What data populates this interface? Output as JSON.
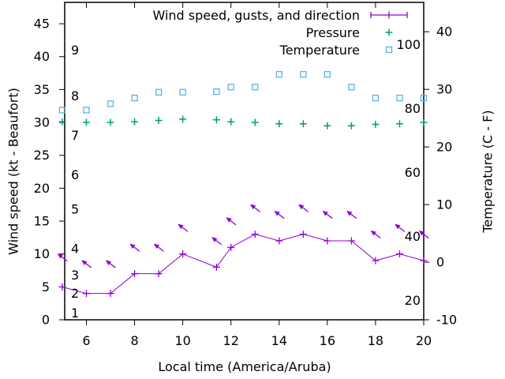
{
  "figure": {
    "x_label": "Local time (America/Aruba)",
    "y_left_label": "Wind speed (kt - Beaufort)",
    "y_right_label": "Temperature (C - F)"
  },
  "legend": [
    {
      "label": "Wind speed, gusts, and direction",
      "series": "wind",
      "marker": "errorbar-line"
    },
    {
      "label": "Pressure",
      "series": "pressure",
      "marker": "plus"
    },
    {
      "label": "Temperature",
      "series": "temperature",
      "marker": "open-square"
    }
  ],
  "colors": {
    "wind": "#9400D3",
    "pressure": "#009E73",
    "temperature": "#56B4E9",
    "axis": "#000000",
    "background": "#FFFFFF"
  },
  "chart_data": {
    "type": "line",
    "title": "",
    "x": [
      5,
      6,
      7,
      8,
      9,
      10,
      11.4,
      12,
      13,
      14,
      15,
      16,
      17,
      18,
      19,
      20
    ],
    "series": [
      {
        "name": "Wind speed (kt)",
        "axis": "left",
        "color_key": "wind",
        "marker": "plus",
        "line": true,
        "values": [
          5,
          4,
          4,
          7,
          7,
          10,
          8,
          11,
          13,
          12,
          13,
          12,
          12,
          9,
          10,
          9
        ]
      },
      {
        "name": "Wind gusts (kt) with direction arrows",
        "axis": "left",
        "color_key": "wind",
        "marker": "arrow-northwest",
        "line": false,
        "direction_note": "all arrows point toward the upper-left (wind blowing toward NW, i.e. from the ESE)",
        "values": [
          9.5,
          8.5,
          8.5,
          11,
          11,
          14,
          12,
          15,
          17,
          16,
          17,
          16,
          16,
          13,
          14,
          13
        ]
      },
      {
        "name": "Pressure (inHg, plotted against left-axis numbers)",
        "axis": "left",
        "color_key": "pressure",
        "marker": "plus",
        "line": false,
        "values": [
          30.1,
          30.0,
          30.0,
          30.1,
          30.3,
          30.5,
          30.4,
          30.1,
          30.0,
          29.8,
          29.8,
          29.5,
          29.5,
          29.7,
          29.8,
          30.0
        ]
      },
      {
        "name": "Temperature (deg C)",
        "axis": "right",
        "color_key": "temperature",
        "marker": "open-square",
        "line": false,
        "values": [
          26.4,
          26.4,
          27.5,
          28.5,
          29.5,
          29.5,
          29.6,
          30.4,
          30.4,
          32.6,
          32.6,
          32.6,
          30.4,
          28.5,
          28.5,
          28.5
        ]
      }
    ],
    "axes": {
      "x": {
        "label": "Local time (America/Aruba)",
        "range": [
          5.1,
          20
        ],
        "ticks": [
          6,
          8,
          10,
          12,
          14,
          16,
          18,
          20
        ]
      },
      "y_left": {
        "label": "Wind speed (kt - Beaufort)",
        "range": [
          0,
          48.25
        ],
        "ticks": [
          0,
          5,
          10,
          15,
          20,
          25,
          30,
          35,
          40,
          45
        ],
        "beaufort_labels": [
          {
            "text": "1",
            "kt": 1
          },
          {
            "text": "2",
            "kt": 4
          },
          {
            "text": "3",
            "kt": 6.8
          },
          {
            "text": "4",
            "kt": 10.8
          },
          {
            "text": "5",
            "kt": 16.8
          },
          {
            "text": "6",
            "kt": 22
          },
          {
            "text": "7",
            "kt": 28
          },
          {
            "text": "8",
            "kt": 34
          },
          {
            "text": "9",
            "kt": 41
          }
        ]
      },
      "y_right": {
        "label": "Temperature (C - F)",
        "range": [
          -10,
          45.1
        ],
        "ticks": [
          -10,
          0,
          10,
          20,
          30,
          40
        ],
        "fahrenheit_labels": [
          {
            "text": "20",
            "f": 20
          },
          {
            "text": "40",
            "f": 40
          },
          {
            "text": "60",
            "f": 60
          },
          {
            "text": "80",
            "f": 80
          },
          {
            "text": "100",
            "f": 100
          }
        ]
      },
      "grid": false,
      "legend_position": "top-right-inside"
    }
  }
}
